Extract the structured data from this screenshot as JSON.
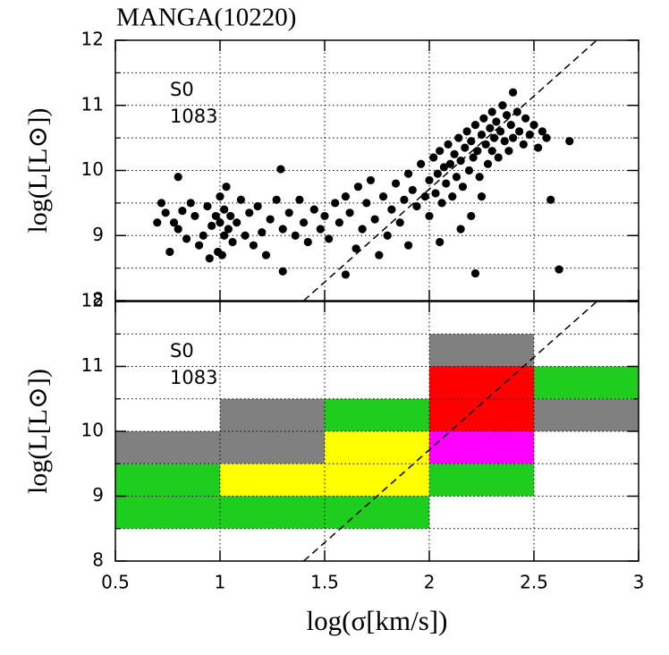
{
  "chart_data": [
    {
      "type": "scatter",
      "title": "MANGA(10220)",
      "ylabel": "log(L[L⊙])",
      "annotations": [
        "S0",
        "1083"
      ],
      "color": "#000000",
      "grid": true,
      "xlim": [
        0.5,
        3
      ],
      "xticks": [
        0.5,
        1,
        1.5,
        2,
        2.5,
        3
      ],
      "ylim": [
        8,
        12
      ],
      "yticks": [
        8,
        9,
        10,
        11,
        12
      ],
      "yminor": [
        8.5,
        9.5,
        10.5,
        11.5
      ],
      "reference_line": {
        "x": [
          1.4,
          2.8
        ],
        "y": [
          8,
          12
        ]
      },
      "x": [
        0.72,
        0.74,
        0.76,
        0.78,
        0.8,
        0.82,
        0.84,
        0.86,
        0.88,
        0.9,
        0.92,
        0.94,
        0.95,
        0.96,
        0.98,
        0.99,
        1.0,
        1.0,
        1.01,
        1.02,
        1.02,
        1.03,
        1.04,
        1.05,
        1.06,
        1.08,
        1.1,
        1.12,
        1.14,
        1.16,
        1.18,
        1.2,
        1.22,
        1.24,
        1.27,
        1.29,
        1.3,
        1.3,
        0.8,
        0.7,
        1.33,
        1.36,
        1.38,
        1.4,
        1.42,
        1.45,
        1.48,
        1.5,
        1.52,
        1.55,
        1.57,
        1.6,
        1.6,
        1.62,
        1.65,
        1.66,
        1.68,
        1.7,
        1.72,
        1.74,
        1.76,
        1.78,
        1.8,
        1.82,
        1.84,
        1.86,
        1.88,
        1.9,
        1.9,
        1.92,
        1.94,
        1.96,
        1.98,
        2.0,
        2.0,
        2.02,
        2.03,
        2.04,
        2.05,
        2.06,
        2.07,
        2.08,
        2.09,
        2.1,
        2.11,
        2.12,
        2.13,
        2.14,
        2.15,
        2.16,
        2.17,
        2.18,
        2.19,
        2.2,
        2.2,
        2.21,
        2.22,
        2.23,
        2.24,
        2.25,
        2.26,
        2.27,
        2.28,
        2.29,
        2.3,
        2.3,
        2.31,
        2.32,
        2.33,
        2.34,
        2.35,
        2.36,
        2.37,
        2.38,
        2.39,
        2.4,
        2.4,
        2.42,
        2.43,
        2.45,
        2.46,
        2.48,
        2.5,
        2.52,
        2.54,
        2.56,
        2.22,
        2.62,
        2.67,
        2.58,
        2.15,
        2.05,
        2.25
      ],
      "y": [
        9.5,
        9.35,
        8.75,
        9.2,
        9.1,
        9.38,
        8.95,
        9.5,
        9.3,
        8.85,
        9.0,
        9.45,
        8.65,
        9.15,
        9.3,
        8.75,
        9.6,
        9.2,
        8.7,
        9.0,
        9.4,
        9.75,
        9.1,
        9.3,
        8.9,
        9.2,
        9.55,
        9.0,
        9.35,
        8.85,
        9.45,
        9.05,
        8.7,
        9.25,
        9.55,
        10.02,
        8.45,
        9.1,
        9.9,
        9.2,
        9.35,
        9.0,
        9.55,
        9.2,
        8.9,
        9.4,
        9.1,
        9.3,
        8.95,
        9.5,
        9.2,
        8.4,
        9.6,
        9.35,
        8.8,
        9.75,
        9.1,
        9.5,
        9.85,
        9.25,
        8.7,
        9.6,
        9.0,
        9.4,
        9.8,
        9.2,
        9.55,
        8.85,
        9.95,
        9.7,
        9.45,
        10.1,
        9.6,
        9.85,
        9.3,
        10.2,
        9.65,
        9.95,
        10.3,
        9.5,
        10.05,
        9.8,
        10.4,
        10.1,
        9.6,
        10.25,
        9.9,
        10.5,
        10.15,
        9.75,
        10.35,
        10.6,
        10.0,
        10.45,
        9.3,
        10.2,
        10.7,
        10.3,
        9.9,
        10.55,
        10.8,
        10.4,
        10.1,
        10.65,
        10.9,
        10.3,
        10.5,
        10.75,
        10.2,
        10.6,
        11.0,
        10.45,
        10.85,
        10.3,
        10.7,
        11.2,
        10.5,
        10.9,
        10.6,
        10.4,
        10.8,
        10.55,
        10.7,
        10.35,
        10.6,
        10.5,
        8.42,
        8.48,
        10.45,
        9.55,
        9.1,
        8.9,
        9.6
      ]
    },
    {
      "type": "heatmap",
      "ylabel": "log(L[L⊙])",
      "xlabel": "log(σ[km/s])",
      "annotations": [
        "S0",
        "1083"
      ],
      "grid": true,
      "xlim": [
        0.5,
        3
      ],
      "xticks": [
        0.5,
        1,
        1.5,
        2,
        2.5,
        3
      ],
      "ylim": [
        8,
        12
      ],
      "yticks": [
        8,
        9,
        10,
        11,
        12
      ],
      "yminor": [
        8.5,
        9.5,
        10.5,
        11.5
      ],
      "reference_line": {
        "x": [
          1.4,
          2.8
        ],
        "y": [
          8,
          12
        ]
      },
      "cells": [
        {
          "x": [
            0.5,
            1
          ],
          "y": [
            9.5,
            10
          ],
          "color": "#808080"
        },
        {
          "x": [
            0.5,
            1
          ],
          "y": [
            8.5,
            9.5
          ],
          "color": "#1ecd1e"
        },
        {
          "x": [
            1,
            1.5
          ],
          "y": [
            9.5,
            10.5
          ],
          "color": "#808080"
        },
        {
          "x": [
            1,
            1.5
          ],
          "y": [
            9,
            9.5
          ],
          "color": "#ffff00"
        },
        {
          "x": [
            1,
            1.5
          ],
          "y": [
            8.5,
            9
          ],
          "color": "#1ecd1e"
        },
        {
          "x": [
            1.5,
            2
          ],
          "y": [
            10,
            10.5
          ],
          "color": "#1ecd1e"
        },
        {
          "x": [
            1.5,
            2
          ],
          "y": [
            9,
            10
          ],
          "color": "#ffff00"
        },
        {
          "x": [
            1.5,
            2
          ],
          "y": [
            8.5,
            9
          ],
          "color": "#1ecd1e"
        },
        {
          "x": [
            2,
            2.5
          ],
          "y": [
            11,
            11.5
          ],
          "color": "#808080"
        },
        {
          "x": [
            2,
            2.5
          ],
          "y": [
            10,
            11
          ],
          "color": "#ff0000"
        },
        {
          "x": [
            2,
            2.5
          ],
          "y": [
            9.5,
            10
          ],
          "color": "#ff00ff"
        },
        {
          "x": [
            2,
            2.5
          ],
          "y": [
            9,
            9.5
          ],
          "color": "#1ecd1e"
        },
        {
          "x": [
            2.5,
            3
          ],
          "y": [
            10.5,
            11
          ],
          "color": "#1ecd1e"
        },
        {
          "x": [
            2.5,
            3
          ],
          "y": [
            10,
            10.5
          ],
          "color": "#808080"
        }
      ]
    }
  ]
}
